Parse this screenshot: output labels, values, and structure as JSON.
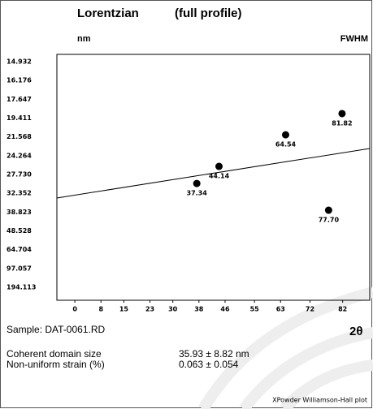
{
  "chart_data": {
    "type": "scatter",
    "title": "Lorentzian",
    "subtitle": "(full profile)",
    "ylabel": "nm",
    "ylabel_right": "FWHM",
    "xlabel": "2θ",
    "y_scale": "reciprocal",
    "xlim": [
      -5.5,
      90.3
    ],
    "ylim": [
      626,
      14.5
    ],
    "xticks": [
      0,
      8,
      15,
      23,
      30,
      38,
      46,
      55,
      63,
      72,
      82
    ],
    "yticks": [
      14.932,
      16.176,
      17.647,
      19.411,
      21.568,
      24.264,
      {
        "value": 27.73,
        "label": "27.730"
      },
      32.352,
      38.823,
      48.528,
      64.704,
      97.057,
      194.113
    ],
    "grid": false,
    "series": [
      {
        "type": "scatter",
        "color": "#000000",
        "x": [
          37.34,
          44.14,
          64.54,
          77.7,
          81.82
        ],
        "values": [
          29.77,
          26.13,
          21.31,
          38.06,
          18.96
        ],
        "value_labels": [
          "37.34",
          "44.14",
          "64.54",
          "77.70",
          "81.82"
        ]
      },
      {
        "type": "line",
        "color": "#000000",
        "x": [
          -5.5,
          90.3
        ],
        "values": [
          33.76,
          23.16
        ]
      }
    ],
    "sample": "Sample: DAT-0061.RD",
    "results": [
      {
        "label": "Coherent domain size",
        "value": "35.93 ± 8.82 nm"
      },
      {
        "label": "Non-uniform strain (%)",
        "value": "0.063 ± 0.054"
      }
    ],
    "footer": "XPowder Williamson-Hall plot"
  }
}
